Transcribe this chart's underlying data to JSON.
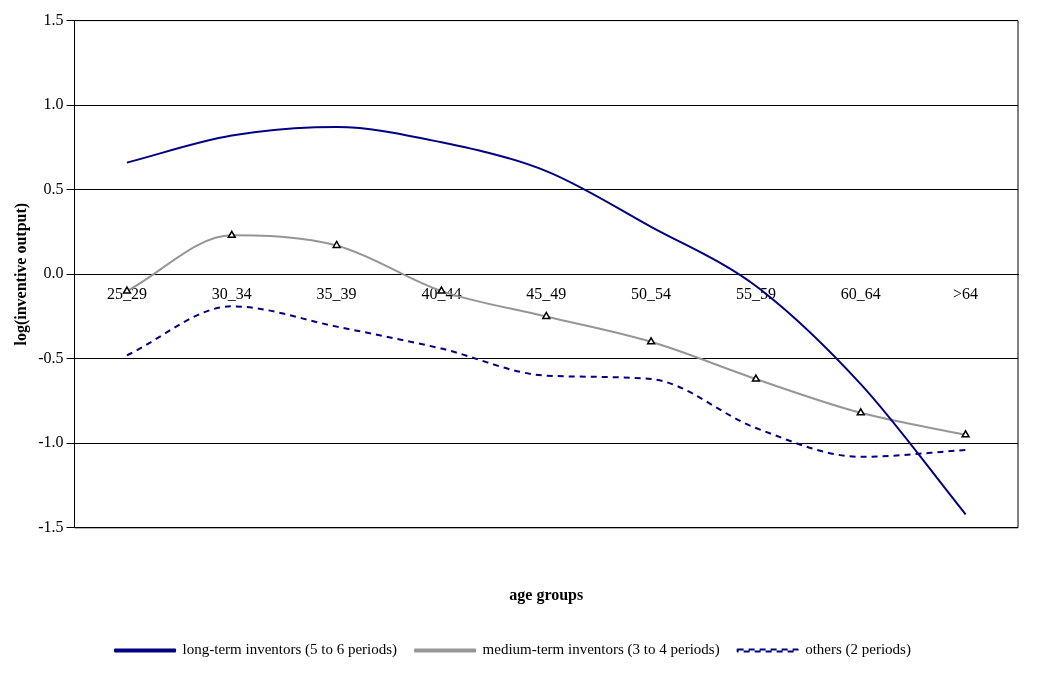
{
  "chart_data": {
    "type": "line",
    "xlabel": "age groups",
    "ylabel": "log(inventive output)",
    "categories": [
      "25_29",
      "30_34",
      "35_39",
      "40_44",
      "45_49",
      "50_54",
      "55_59",
      "60_64",
      ">64"
    ],
    "series": [
      {
        "name": "long-term inventors (5 to 6 periods)",
        "color": "#000080",
        "marker": "none",
        "line_style": "solid",
        "values": [
          0.66,
          0.82,
          0.87,
          0.78,
          0.61,
          0.28,
          -0.07,
          -0.65,
          -1.42
        ]
      },
      {
        "name": "medium-term inventors (3 to 4 periods)",
        "color": "#969696",
        "marker": "triangle",
        "line_style": "solid",
        "values": [
          -0.1,
          0.23,
          0.17,
          -0.1,
          -0.25,
          -0.4,
          -0.62,
          -0.82,
          -0.95
        ]
      },
      {
        "name": "others (2 periods)",
        "color": "#000080",
        "marker": "none",
        "line_style": "dashed",
        "values": [
          -0.48,
          -0.19,
          -0.31,
          -0.44,
          -0.6,
          -0.62,
          -0.91,
          -1.08,
          -1.04
        ]
      }
    ],
    "ylim": [
      -1.5,
      1.5
    ],
    "yticks": [
      {
        "value": -1.5,
        "label": "-1.5"
      },
      {
        "value": -1.0,
        "label": "-1.0"
      },
      {
        "value": -0.5,
        "label": "-0.5"
      },
      {
        "value": 0,
        "label": "0.0"
      },
      {
        "value": 0.5,
        "label": "0.5"
      },
      {
        "value": 1.0,
        "label": "1.0"
      },
      {
        "value": 1.5,
        "label": "1.5"
      }
    ],
    "grid": "y",
    "legend": "bottom"
  }
}
